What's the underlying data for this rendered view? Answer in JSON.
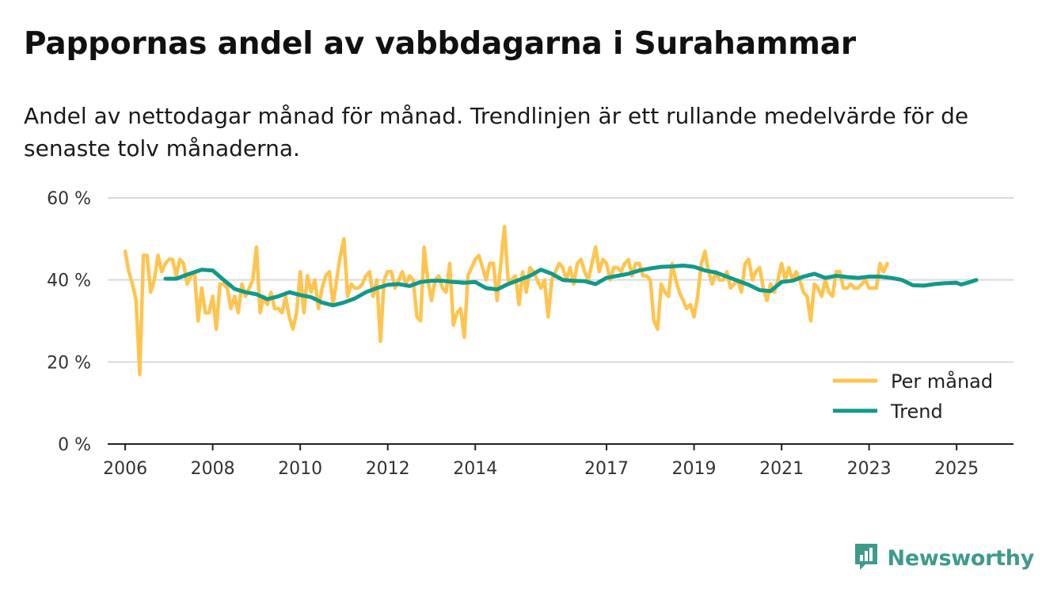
{
  "title": "Pappornas andel av vabbdagarna i Surahammar",
  "subtitle": "Andel av nettodagar månad för månad. Trendlinjen är ett rullande medelvärde för de senaste tolv månaderna.",
  "brand": {
    "name": "Newsworthy",
    "icon": "newsworthy-logo-icon"
  },
  "colors": {
    "monthly": "#FFC44F",
    "trend": "#12998A",
    "grid": "#d9d9d9",
    "axis": "#222222",
    "brand": "#3d9b8c"
  },
  "chart_data": {
    "type": "line",
    "title": "Pappornas andel av vabbdagarna i Surahammar",
    "ylim": [
      0,
      60
    ],
    "xlim": [
      2005.6,
      2026.3
    ],
    "y_ticks": [
      {
        "value": 0,
        "label": "0 %"
      },
      {
        "value": 20,
        "label": "20 %"
      },
      {
        "value": 40,
        "label": "40 %"
      },
      {
        "value": 60,
        "label": "60 %"
      }
    ],
    "x_ticks": [
      {
        "value": 2006,
        "label": "2006"
      },
      {
        "value": 2008,
        "label": "2008"
      },
      {
        "value": 2010,
        "label": "2010"
      },
      {
        "value": 2012,
        "label": "2012"
      },
      {
        "value": 2014,
        "label": "2014"
      },
      {
        "value": 2017,
        "label": "2017"
      },
      {
        "value": 2019,
        "label": "2019"
      },
      {
        "value": 2021,
        "label": "2021"
      },
      {
        "value": 2023,
        "label": "2023"
      },
      {
        "value": 2025,
        "label": "2025"
      }
    ],
    "legend_position": "bottom-right",
    "grid": true,
    "series": [
      {
        "name": "Per månad",
        "color": "#FFC44F",
        "x_start": 2006.0,
        "step": 0.08333,
        "values": [
          47,
          42,
          39,
          35,
          17,
          46,
          46,
          37,
          40,
          46,
          42,
          44,
          45,
          45,
          41,
          45,
          44,
          39,
          41,
          42,
          30,
          38,
          32,
          32,
          36,
          28,
          39,
          39,
          38,
          33,
          36,
          32,
          39,
          36,
          38,
          40,
          48,
          32,
          36,
          34,
          37,
          33,
          33,
          32,
          36,
          31,
          28,
          32,
          42,
          32,
          41,
          37,
          40,
          33,
          38,
          41,
          42,
          34,
          40,
          46,
          50,
          36,
          39,
          38,
          38,
          39,
          41,
          42,
          36,
          40,
          25,
          40,
          42,
          42,
          38,
          40,
          42,
          39,
          41,
          40,
          31,
          30,
          48,
          40,
          35,
          40,
          41,
          38,
          37,
          44,
          29,
          32,
          33,
          26,
          41,
          43,
          45,
          46,
          43,
          40,
          44,
          44,
          35,
          44,
          53,
          40,
          40,
          41,
          34,
          42,
          37,
          43,
          42,
          40,
          38,
          40,
          31,
          40,
          42,
          44,
          43,
          40,
          43,
          39,
          44,
          45,
          42,
          40,
          44,
          48,
          42,
          45,
          44,
          40,
          43,
          43,
          42,
          44,
          45,
          41,
          44,
          44,
          41,
          41,
          40,
          30,
          28,
          39,
          37,
          36,
          44,
          40,
          37,
          35,
          33,
          34,
          31,
          36,
          44,
          47,
          42,
          39,
          42,
          40,
          40,
          42,
          38,
          39,
          40,
          37,
          44,
          45,
          40,
          42,
          43,
          38,
          35,
          39,
          37,
          40,
          44,
          40,
          43,
          40,
          42,
          40,
          37,
          36,
          30,
          39,
          38,
          36,
          40,
          37,
          36,
          42,
          42,
          38,
          38,
          39,
          38,
          38,
          39,
          40,
          38,
          38,
          38,
          44,
          42,
          44
        ]
      },
      {
        "name": "Trend",
        "color": "#12998A",
        "points": [
          [
            2006.92,
            40.3
          ],
          [
            2007.17,
            40.3
          ],
          [
            2007.42,
            41.3
          ],
          [
            2007.75,
            42.5
          ],
          [
            2008.0,
            42.3
          ],
          [
            2008.25,
            40.0
          ],
          [
            2008.5,
            37.8
          ],
          [
            2008.75,
            37.0
          ],
          [
            2009.0,
            36.5
          ],
          [
            2009.25,
            35.3
          ],
          [
            2009.5,
            36.0
          ],
          [
            2009.75,
            37.0
          ],
          [
            2010.0,
            36.3
          ],
          [
            2010.25,
            35.8
          ],
          [
            2010.5,
            34.5
          ],
          [
            2010.75,
            33.8
          ],
          [
            2011.0,
            34.5
          ],
          [
            2011.25,
            35.5
          ],
          [
            2011.5,
            37.0
          ],
          [
            2011.75,
            38.0
          ],
          [
            2012.0,
            38.8
          ],
          [
            2012.25,
            39.0
          ],
          [
            2012.5,
            38.5
          ],
          [
            2012.75,
            39.5
          ],
          [
            2013.0,
            39.8
          ],
          [
            2013.25,
            39.8
          ],
          [
            2013.5,
            39.5
          ],
          [
            2013.75,
            39.3
          ],
          [
            2014.0,
            39.5
          ],
          [
            2014.25,
            38.0
          ],
          [
            2014.5,
            37.7
          ],
          [
            2014.75,
            39.0
          ],
          [
            2015.0,
            40.0
          ],
          [
            2015.25,
            41.0
          ],
          [
            2015.5,
            42.5
          ],
          [
            2015.75,
            41.5
          ],
          [
            2016.0,
            40.0
          ],
          [
            2016.25,
            39.8
          ],
          [
            2016.5,
            39.7
          ],
          [
            2016.75,
            39.0
          ],
          [
            2017.0,
            40.5
          ],
          [
            2017.25,
            41.0
          ],
          [
            2017.5,
            41.5
          ],
          [
            2017.75,
            42.3
          ],
          [
            2018.0,
            42.8
          ],
          [
            2018.25,
            43.2
          ],
          [
            2018.5,
            43.3
          ],
          [
            2018.75,
            43.5
          ],
          [
            2019.0,
            43.2
          ],
          [
            2019.25,
            42.3
          ],
          [
            2019.5,
            41.8
          ],
          [
            2019.75,
            40.8
          ],
          [
            2020.0,
            39.8
          ],
          [
            2020.25,
            38.8
          ],
          [
            2020.5,
            37.5
          ],
          [
            2020.75,
            37.3
          ],
          [
            2021.0,
            39.5
          ],
          [
            2021.25,
            39.8
          ],
          [
            2021.5,
            40.8
          ],
          [
            2021.75,
            41.5
          ],
          [
            2022.0,
            40.5
          ],
          [
            2022.25,
            41.0
          ],
          [
            2022.5,
            40.7
          ],
          [
            2022.75,
            40.5
          ],
          [
            2023.0,
            40.8
          ],
          [
            2023.25,
            40.8
          ],
          [
            2023.5,
            40.5
          ],
          [
            2023.75,
            40.0
          ],
          [
            2024.0,
            38.7
          ],
          [
            2024.25,
            38.6
          ],
          [
            2024.5,
            39.0
          ],
          [
            2024.75,
            39.2
          ],
          [
            2025.0,
            39.3
          ],
          [
            2025.1,
            38.9
          ],
          [
            2025.25,
            39.3
          ],
          [
            2025.45,
            40.0
          ]
        ]
      }
    ]
  }
}
